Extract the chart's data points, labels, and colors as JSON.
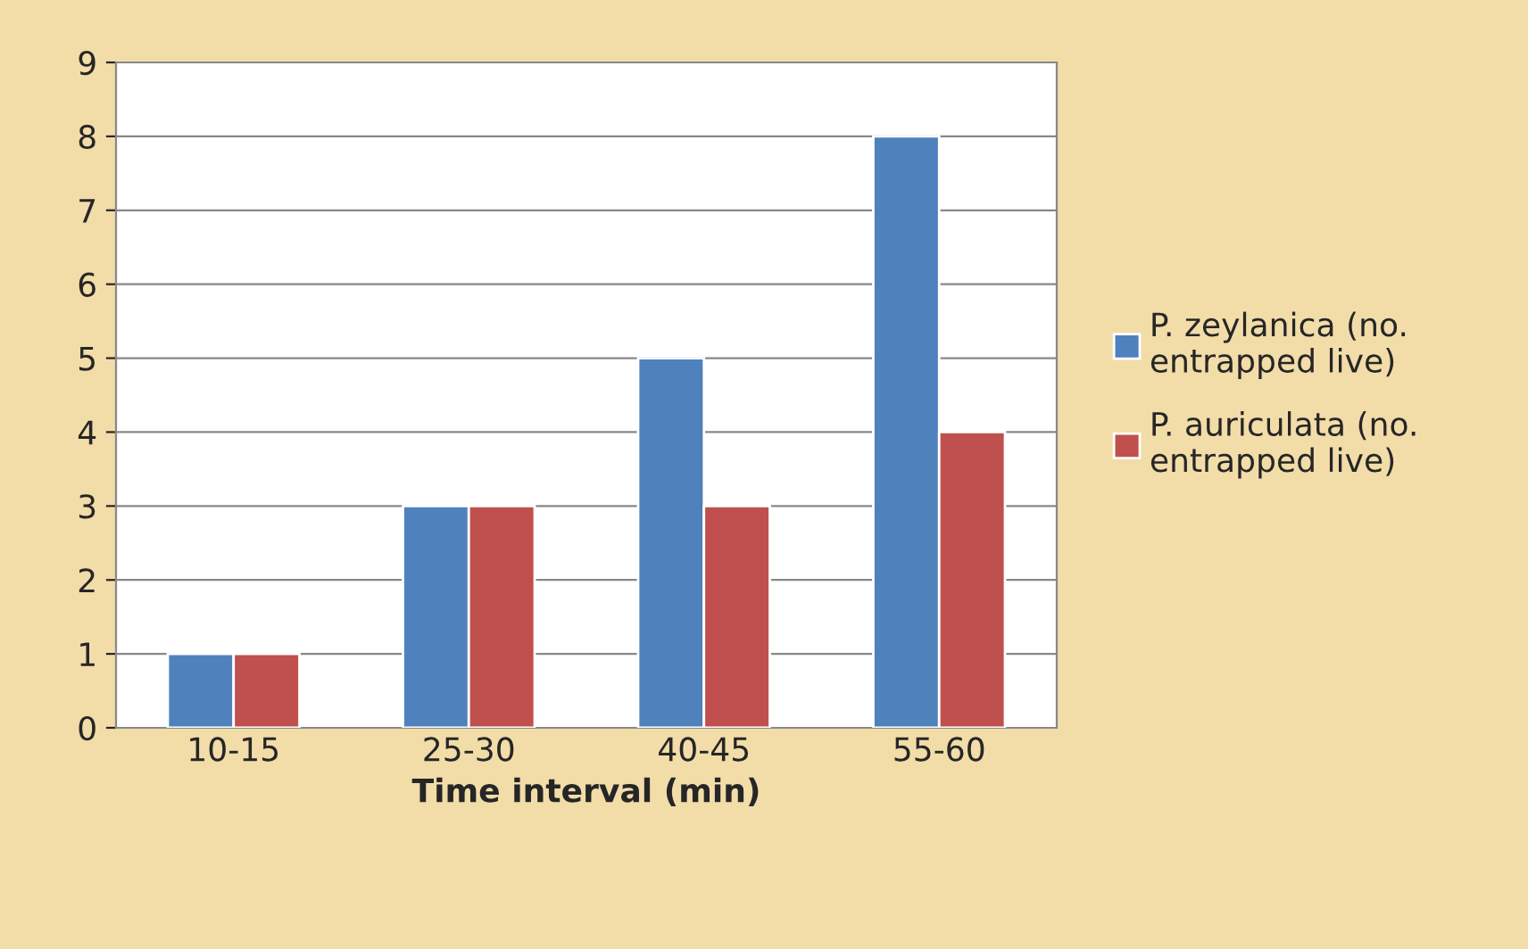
{
  "chart_data": {
    "type": "bar",
    "xlabel": "Time interval (min)",
    "categories": [
      "10-15",
      "25-30",
      "40-45",
      "55-60"
    ],
    "series": [
      {
        "name": "P. zeylanica (no.\nentrapped live)",
        "color": "#4f81bd",
        "values": [
          1,
          3,
          5,
          8
        ]
      },
      {
        "name": "P. auriculata (no.\nentrapped live)",
        "color": "#c0504d",
        "values": [
          1,
          3,
          3,
          4
        ]
      }
    ],
    "ylim": [
      0,
      9
    ],
    "yticks": [
      0,
      1,
      2,
      3,
      4,
      5,
      6,
      7,
      8,
      9
    ],
    "grid": "y",
    "legend": "right"
  }
}
